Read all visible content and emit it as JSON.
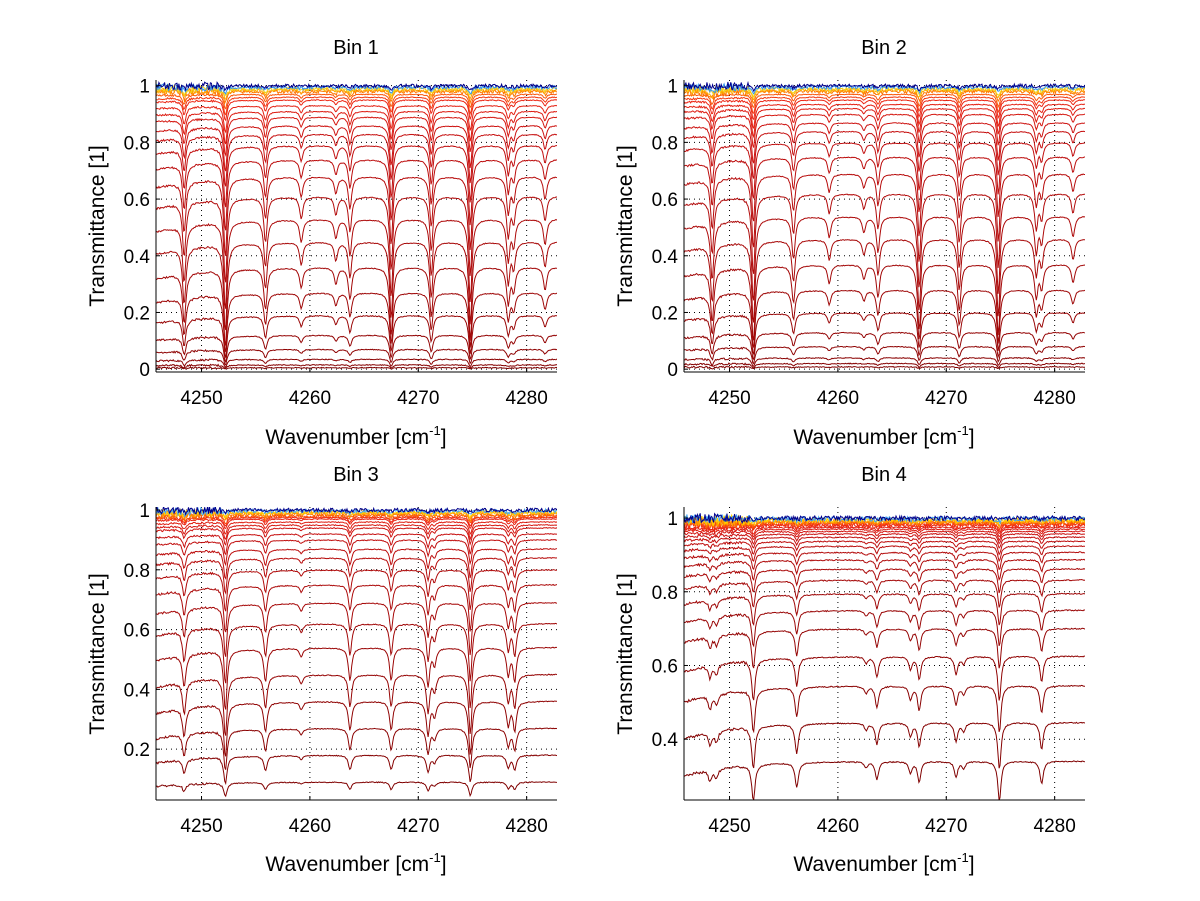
{
  "figure": {
    "background": "#ffffff"
  },
  "chart_data": [
    {
      "type": "line",
      "title": "Bin 1",
      "xlabel": "Wavenumber [cm",
      "xlabel_sup": "-1",
      "xlabel_end": "]",
      "ylabel": "Transmittance [1]",
      "xlim": [
        4245.8,
        4282.8
      ],
      "ylim": [
        -0.01,
        1.02
      ],
      "xticks": [
        4250,
        4260,
        4270,
        4280
      ],
      "xtick_labels": [
        "4250",
        "4260",
        "4270",
        "4280"
      ],
      "yticks": [
        0,
        0.2,
        0.4,
        0.6,
        0.8,
        1
      ],
      "ytick_labels": [
        "0",
        "0.2",
        "0.4",
        "0.6",
        "0.8",
        "1"
      ],
      "grid": "dotted",
      "series_description": "Family of transmittance spectra (~30 curves) from ~1.0 (blue/yellow, top) down to ~0.01 (dark red, bottom)",
      "baseline_levels": [
        1.0,
        0.995,
        0.99,
        0.985,
        0.98,
        0.97,
        0.96,
        0.95,
        0.93,
        0.91,
        0.89,
        0.86,
        0.83,
        0.79,
        0.74,
        0.68,
        0.61,
        0.53,
        0.45,
        0.36,
        0.27,
        0.19,
        0.12,
        0.07,
        0.035,
        0.015,
        0.005
      ],
      "absorption_lines": [
        {
          "center": 4248.4,
          "depth": 0.55
        },
        {
          "center": 4252.2,
          "depth": 0.85
        },
        {
          "center": 4255.9,
          "depth": 0.45
        },
        {
          "center": 4259.2,
          "depth": 0.22
        },
        {
          "center": 4262.4,
          "depth": 0.18
        },
        {
          "center": 4263.7,
          "depth": 0.35
        },
        {
          "center": 4267.5,
          "depth": 0.75
        },
        {
          "center": 4271.2,
          "depth": 0.55
        },
        {
          "center": 4274.8,
          "depth": 0.8
        },
        {
          "center": 4278.3,
          "depth": 0.4
        },
        {
          "center": 4278.8,
          "depth": 0.25
        },
        {
          "center": 4281.7,
          "depth": 0.25
        }
      ]
    },
    {
      "type": "line",
      "title": "Bin 2",
      "xlabel": "Wavenumber [cm",
      "xlabel_sup": "-1",
      "xlabel_end": "]",
      "ylabel": "Transmittance [1]",
      "xlim": [
        4245.8,
        4282.8
      ],
      "ylim": [
        -0.01,
        1.02
      ],
      "xticks": [
        4250,
        4260,
        4270,
        4280
      ],
      "xtick_labels": [
        "4250",
        "4260",
        "4270",
        "4280"
      ],
      "yticks": [
        0,
        0.2,
        0.4,
        0.6,
        0.8,
        1
      ],
      "ytick_labels": [
        "0",
        "0.2",
        "0.4",
        "0.6",
        "0.8",
        "1"
      ],
      "grid": "dotted",
      "series_description": "Family of transmittance spectra (~30 curves) from ~1.0 down to ~0.01",
      "baseline_levels": [
        1.0,
        0.995,
        0.99,
        0.985,
        0.98,
        0.97,
        0.96,
        0.95,
        0.935,
        0.92,
        0.9,
        0.87,
        0.84,
        0.8,
        0.75,
        0.69,
        0.62,
        0.54,
        0.46,
        0.37,
        0.28,
        0.2,
        0.13,
        0.08,
        0.04,
        0.02,
        0.008
      ],
      "absorption_lines": [
        {
          "center": 4248.4,
          "depth": 0.55
        },
        {
          "center": 4252.2,
          "depth": 0.8
        },
        {
          "center": 4255.9,
          "depth": 0.4
        },
        {
          "center": 4259.2,
          "depth": 0.2
        },
        {
          "center": 4262.4,
          "depth": 0.15
        },
        {
          "center": 4263.7,
          "depth": 0.35
        },
        {
          "center": 4267.5,
          "depth": 0.7
        },
        {
          "center": 4271.2,
          "depth": 0.5
        },
        {
          "center": 4274.8,
          "depth": 0.75
        },
        {
          "center": 4278.3,
          "depth": 0.35
        },
        {
          "center": 4278.8,
          "depth": 0.25
        },
        {
          "center": 4281.7,
          "depth": 0.2
        }
      ]
    },
    {
      "type": "line",
      "title": "Bin 3",
      "xlabel": "Wavenumber [cm",
      "xlabel_sup": "-1",
      "xlabel_end": "]",
      "ylabel": "Transmittance [1]",
      "xlim": [
        4245.8,
        4282.8
      ],
      "ylim": [
        0.03,
        1.01
      ],
      "xticks": [
        4250,
        4260,
        4270,
        4280
      ],
      "xtick_labels": [
        "4250",
        "4260",
        "4270",
        "4280"
      ],
      "yticks": [
        0.2,
        0.4,
        0.6,
        0.8,
        1
      ],
      "ytick_labels": [
        "0.2",
        "0.4",
        "0.6",
        "0.8",
        "1"
      ],
      "grid": "dotted",
      "series_description": "Family of transmittance spectra (~30 curves) from ~1.0 down to ~0.07",
      "baseline_levels": [
        1.0,
        0.997,
        0.993,
        0.99,
        0.985,
        0.98,
        0.975,
        0.97,
        0.96,
        0.95,
        0.94,
        0.92,
        0.9,
        0.87,
        0.84,
        0.8,
        0.75,
        0.69,
        0.62,
        0.54,
        0.45,
        0.36,
        0.27,
        0.18,
        0.09
      ],
      "absorption_lines": [
        {
          "center": 4248.4,
          "depth": 0.3
        },
        {
          "center": 4252.2,
          "depth": 0.55
        },
        {
          "center": 4255.9,
          "depth": 0.3
        },
        {
          "center": 4259.2,
          "depth": 0.08
        },
        {
          "center": 4263.7,
          "depth": 0.3
        },
        {
          "center": 4267.5,
          "depth": 0.3
        },
        {
          "center": 4270.9,
          "depth": 0.35
        },
        {
          "center": 4271.5,
          "depth": 0.15
        },
        {
          "center": 4274.8,
          "depth": 0.55
        },
        {
          "center": 4278.3,
          "depth": 0.25
        },
        {
          "center": 4278.9,
          "depth": 0.3
        }
      ]
    },
    {
      "type": "line",
      "title": "Bin 4",
      "xlabel": "Wavenumber [cm",
      "xlabel_sup": "-1",
      "xlabel_end": "]",
      "ylabel": "Transmittance [1]",
      "xlim": [
        4245.8,
        4282.8
      ],
      "ylim": [
        0.235,
        1.03
      ],
      "xticks": [
        4250,
        4260,
        4270,
        4280
      ],
      "xtick_labels": [
        "4250",
        "4260",
        "4270",
        "4280"
      ],
      "yticks": [
        0.4,
        0.6,
        0.8,
        1
      ],
      "ytick_labels": [
        "0.4",
        "0.6",
        "0.8",
        "1"
      ],
      "grid": "dotted",
      "series_description": "Family of transmittance spectra (~30 curves) from ~1.0 down to ~0.34",
      "baseline_levels": [
        1.0,
        0.998,
        0.995,
        0.992,
        0.99,
        0.987,
        0.984,
        0.98,
        0.975,
        0.97,
        0.964,
        0.957,
        0.948,
        0.937,
        0.924,
        0.907,
        0.887,
        0.862,
        0.832,
        0.795,
        0.75,
        0.7,
        0.625,
        0.545,
        0.445,
        0.34
      ],
      "absorption_lines": [
        {
          "center": 4248.2,
          "depth": 0.1
        },
        {
          "center": 4248.8,
          "depth": 0.08
        },
        {
          "center": 4252.2,
          "depth": 0.32
        },
        {
          "center": 4256.2,
          "depth": 0.22
        },
        {
          "center": 4262.6,
          "depth": 0.05
        },
        {
          "center": 4263.6,
          "depth": 0.16
        },
        {
          "center": 4266.7,
          "depth": 0.1
        },
        {
          "center": 4267.5,
          "depth": 0.18
        },
        {
          "center": 4270.9,
          "depth": 0.14
        },
        {
          "center": 4271.6,
          "depth": 0.06
        },
        {
          "center": 4274.9,
          "depth": 0.35
        },
        {
          "center": 4278.8,
          "depth": 0.2
        }
      ]
    }
  ]
}
